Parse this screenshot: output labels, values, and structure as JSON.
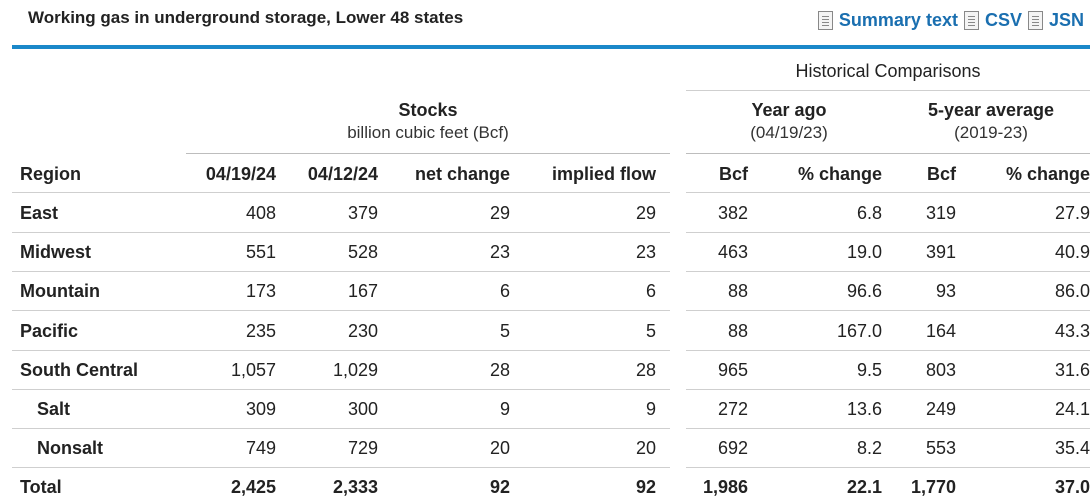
{
  "title": "Working gas in underground storage, Lower 48 states",
  "links": [
    {
      "label": "Summary text",
      "icon": "document-icon"
    },
    {
      "label": "CSV",
      "icon": "document-icon"
    },
    {
      "label": "JSN",
      "icon": "document-icon"
    }
  ],
  "headers": {
    "historical": "Historical Comparisons",
    "stocks": "Stocks",
    "stocks_unit": "billion cubic feet (Bcf)",
    "year_ago": "Year ago",
    "year_ago_date": "(04/19/23)",
    "five_year": "5-year average",
    "five_year_range": "(2019-23)",
    "columns": [
      "Region",
      "04/19/24",
      "04/12/24",
      "net change",
      "implied flow",
      "Bcf",
      "% change",
      "Bcf",
      "% change"
    ]
  },
  "rows": [
    {
      "region": "East",
      "indent": false,
      "bold": false,
      "cells": [
        "408",
        "379",
        "29",
        "29",
        "382",
        "6.8",
        "319",
        "27.9"
      ]
    },
    {
      "region": "Midwest",
      "indent": false,
      "bold": false,
      "cells": [
        "551",
        "528",
        "23",
        "23",
        "463",
        "19.0",
        "391",
        "40.9"
      ]
    },
    {
      "region": "Mountain",
      "indent": false,
      "bold": false,
      "cells": [
        "173",
        "167",
        "6",
        "6",
        "88",
        "96.6",
        "93",
        "86.0"
      ]
    },
    {
      "region": "Pacific",
      "indent": false,
      "bold": false,
      "cells": [
        "235",
        "230",
        "5",
        "5",
        "88",
        "167.0",
        "164",
        "43.3"
      ]
    },
    {
      "region": "South Central",
      "indent": false,
      "bold": false,
      "cells": [
        "1,057",
        "1,029",
        "28",
        "28",
        "965",
        "9.5",
        "803",
        "31.6"
      ]
    },
    {
      "region": "Salt",
      "indent": true,
      "bold": false,
      "cells": [
        "309",
        "300",
        "9",
        "9",
        "272",
        "13.6",
        "249",
        "24.1"
      ]
    },
    {
      "region": "Nonsalt",
      "indent": true,
      "bold": false,
      "cells": [
        "749",
        "729",
        "20",
        "20",
        "692",
        "8.2",
        "553",
        "35.4"
      ]
    },
    {
      "region": "Total",
      "indent": false,
      "bold": true,
      "cells": [
        "2,425",
        "2,333",
        "92",
        "92",
        "1,986",
        "22.1",
        "1,770",
        "37.0"
      ]
    }
  ],
  "colors": {
    "accent": "#1a88c9",
    "link": "#1a6fb0"
  }
}
